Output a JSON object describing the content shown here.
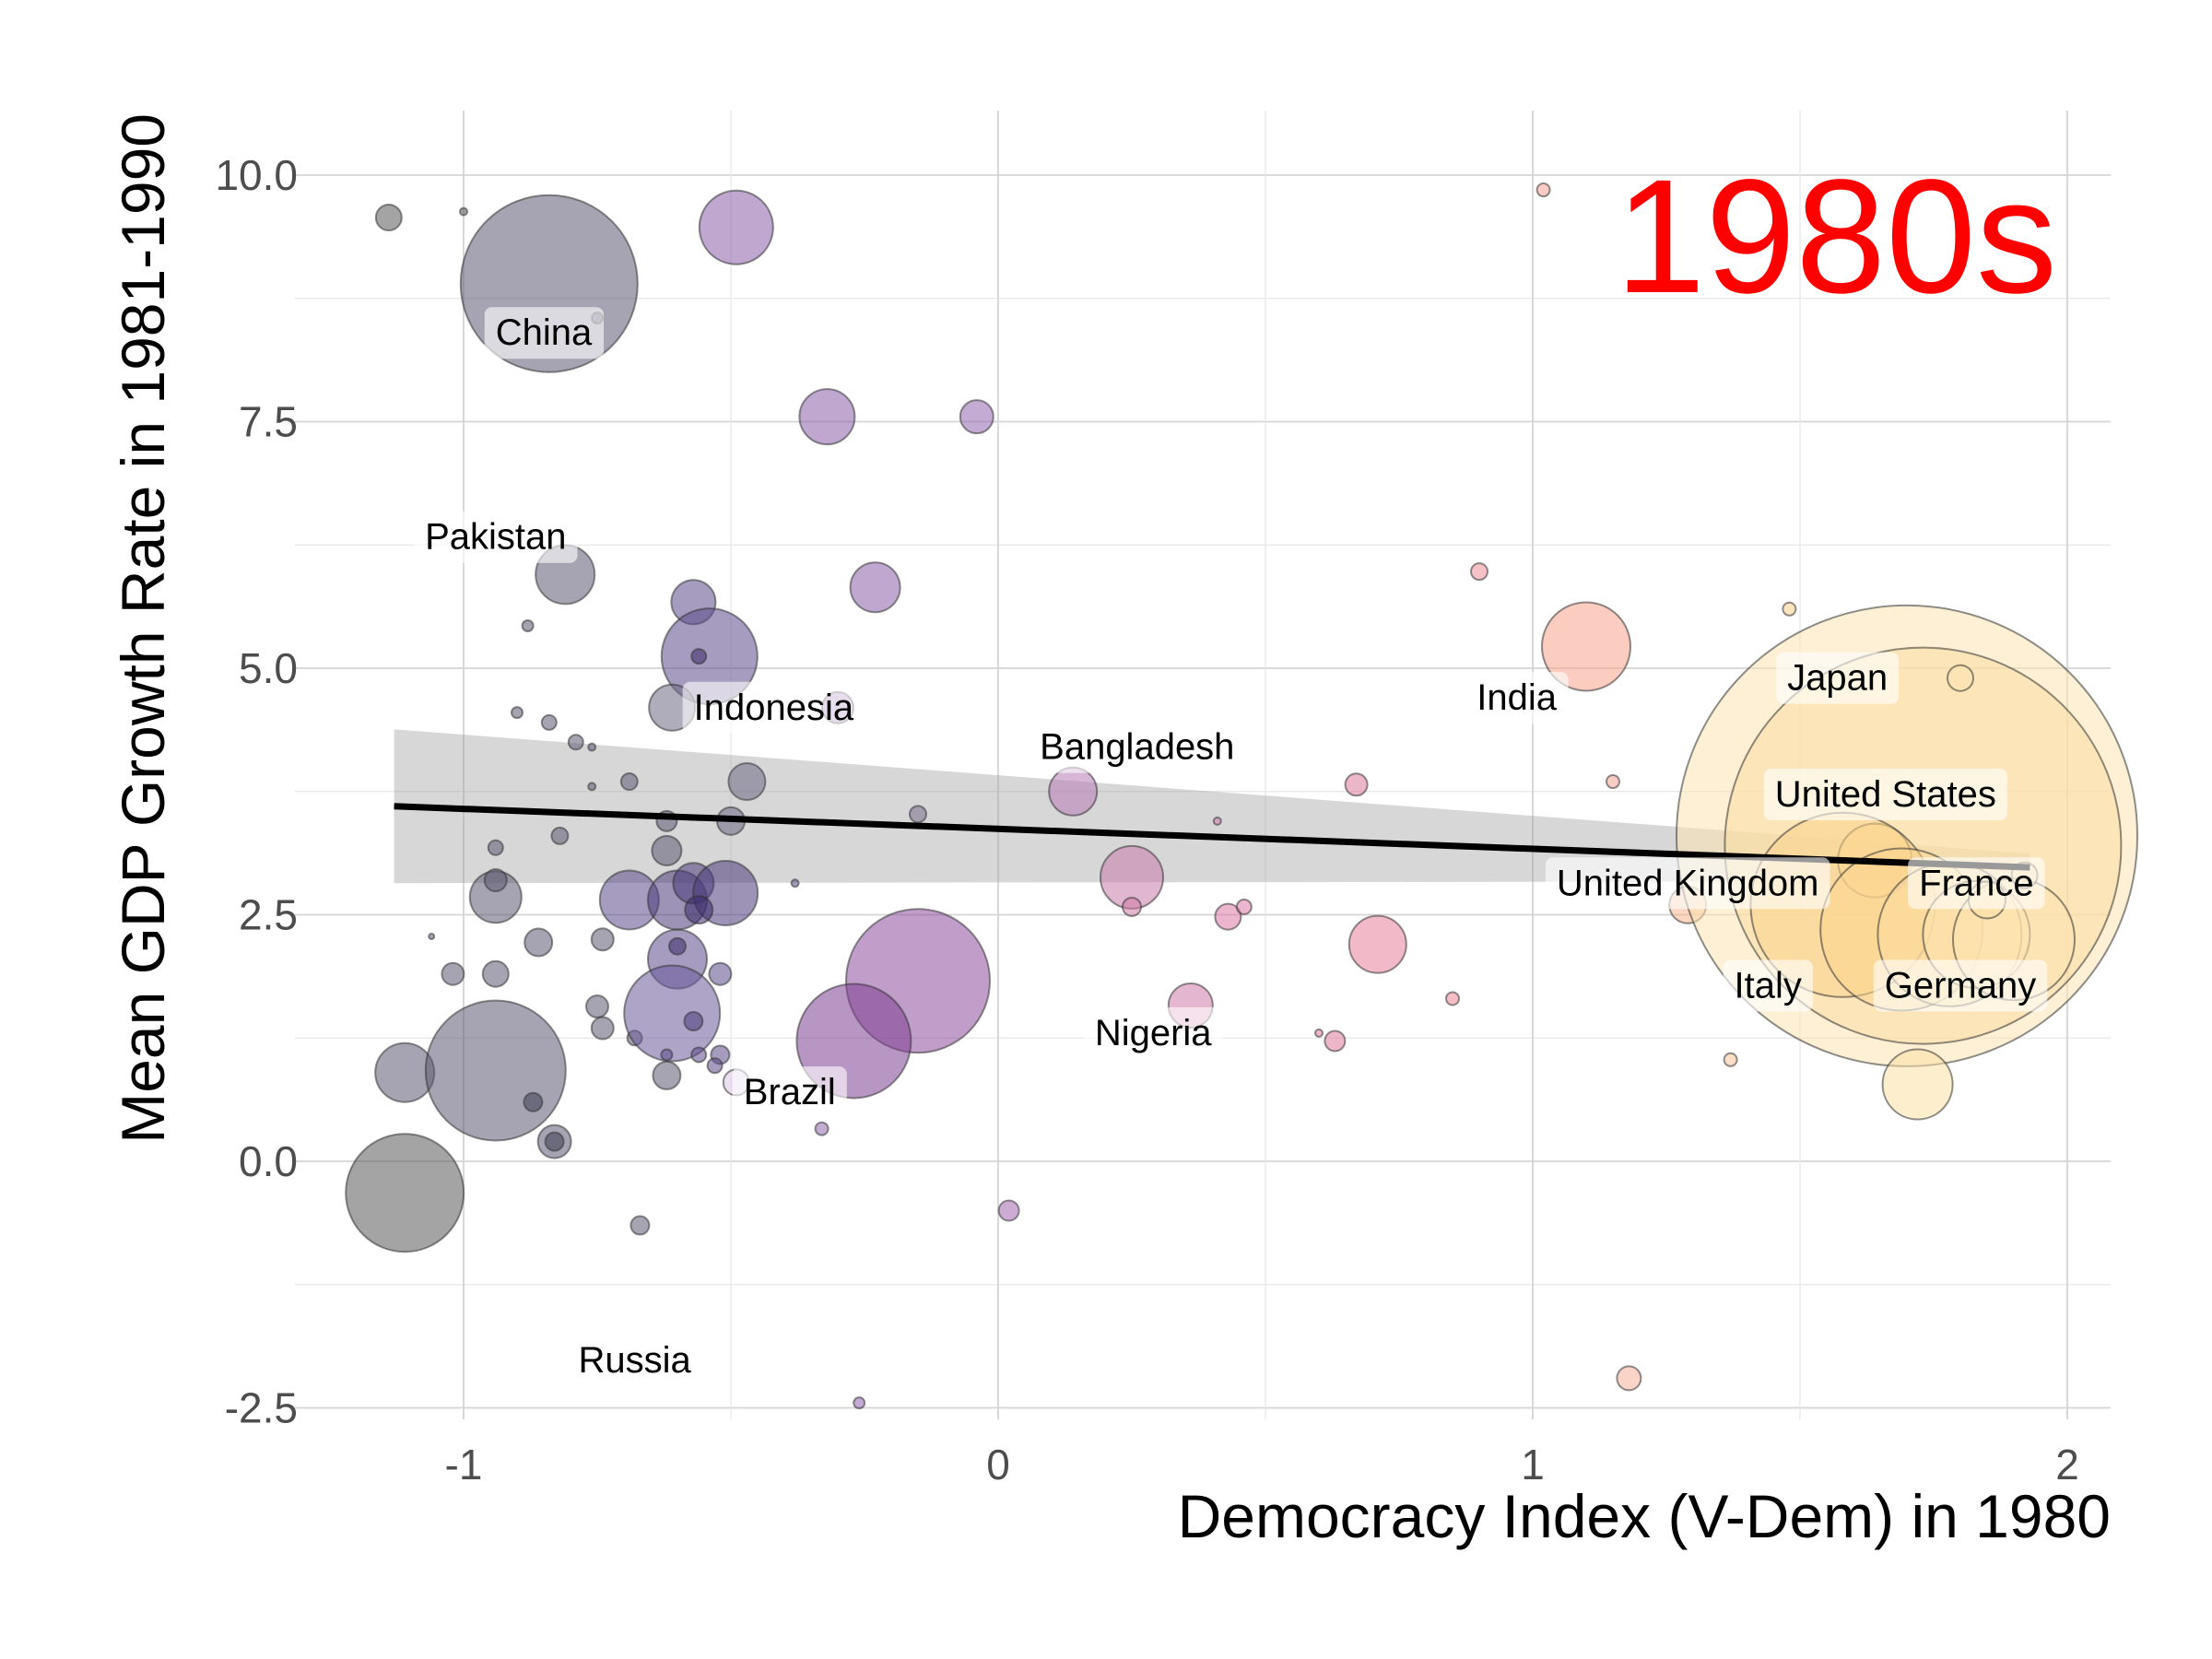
{
  "chart_data": {
    "type": "scatter",
    "title": "",
    "annotation": "1980s",
    "annotation_color": "#ff0000",
    "xlabel": "Democracy Index (V-Dem) in 1980",
    "ylabel": "Mean GDP Growth Rate in 1981-1990",
    "xlim": [
      -1.25,
      2.08
    ],
    "ylim": [
      -2.5,
      10.55
    ],
    "x_ticks": [
      -1,
      0,
      1,
      2
    ],
    "x_tick_labels": [
      "-1",
      "0",
      "1",
      "2"
    ],
    "y_ticks": [
      -2.5,
      0,
      2.5,
      5,
      7.5,
      10
    ],
    "y_tick_labels": [
      "-2.5",
      "0.0",
      "2.5",
      "5.0",
      "7.5",
      "10.0"
    ],
    "grid": true,
    "legend": "none",
    "encoding": {
      "size": "population",
      "color": "democracy index (dark purple → pink → light yellow)"
    },
    "trend": {
      "x0": -1.13,
      "y0": 3.6,
      "x1": 1.93,
      "y1": 2.98,
      "ci_lower": [
        2.82,
        2.84
      ],
      "ci_upper": [
        4.38,
        3.12
      ]
    },
    "points": [
      {
        "x": -1.14,
        "y": 9.57,
        "r": 14,
        "c": "#5a5a5a"
      },
      {
        "x": -1.0,
        "y": 9.63,
        "r": 4,
        "c": "#5a5a5a"
      },
      {
        "x": -0.84,
        "y": 8.9,
        "r": 96,
        "c": "#5c5a73"
      },
      {
        "x": -0.75,
        "y": 8.55,
        "r": 6,
        "c": "#4f4a64"
      },
      {
        "x": -0.49,
        "y": 9.47,
        "r": 40,
        "c": "#8a5fa8"
      },
      {
        "x": -0.32,
        "y": 7.55,
        "r": 30,
        "c": "#8a5fa8"
      },
      {
        "x": -0.04,
        "y": 7.55,
        "r": 18,
        "c": "#9366b0"
      },
      {
        "x": -0.81,
        "y": 5.95,
        "r": 32,
        "c": "#5c5a73"
      },
      {
        "x": -0.88,
        "y": 5.43,
        "r": 6,
        "c": "#5c5a73"
      },
      {
        "x": -0.57,
        "y": 5.67,
        "r": 24,
        "c": "#5c4b8a"
      },
      {
        "x": -0.23,
        "y": 5.82,
        "r": 27,
        "c": "#8a5fa8"
      },
      {
        "x": -0.54,
        "y": 5.12,
        "r": 52,
        "c": "#5c4b8a"
      },
      {
        "x": -0.56,
        "y": 5.12,
        "r": 8,
        "c": "#3d2a6a"
      },
      {
        "x": -0.61,
        "y": 4.6,
        "r": 25,
        "c": "#6e6a85"
      },
      {
        "x": -0.3,
        "y": 4.6,
        "r": 17,
        "c": "#9366b0"
      },
      {
        "x": -0.9,
        "y": 4.55,
        "r": 6,
        "c": "#5c5a73"
      },
      {
        "x": -0.84,
        "y": 4.45,
        "r": 8,
        "c": "#5c5a73"
      },
      {
        "x": -0.79,
        "y": 4.25,
        "r": 8,
        "c": "#5c5a73"
      },
      {
        "x": -0.76,
        "y": 4.2,
        "r": 4,
        "c": "#5c5a73"
      },
      {
        "x": -0.69,
        "y": 3.85,
        "r": 9,
        "c": "#5c5a73"
      },
      {
        "x": -0.76,
        "y": 3.8,
        "r": 4,
        "c": "#5c5a73"
      },
      {
        "x": -0.47,
        "y": 3.85,
        "r": 20,
        "c": "#6e6a85"
      },
      {
        "x": -0.5,
        "y": 3.45,
        "r": 15,
        "c": "#6e6a85"
      },
      {
        "x": -0.62,
        "y": 3.45,
        "r": 11,
        "c": "#5c5a73"
      },
      {
        "x": -0.15,
        "y": 3.52,
        "r": 9,
        "c": "#7a6e8a"
      },
      {
        "x": -0.82,
        "y": 3.3,
        "r": 9,
        "c": "#5c5a73"
      },
      {
        "x": -0.94,
        "y": 3.18,
        "r": 8,
        "c": "#5c5a73"
      },
      {
        "x": -0.62,
        "y": 3.15,
        "r": 16,
        "c": "#5c5a73"
      },
      {
        "x": -0.94,
        "y": 2.68,
        "r": 28,
        "c": "#5c5a73"
      },
      {
        "x": -0.94,
        "y": 2.85,
        "r": 12,
        "c": "#5c5a73"
      },
      {
        "x": -0.69,
        "y": 2.65,
        "r": 32,
        "c": "#5c4b8a"
      },
      {
        "x": -0.6,
        "y": 2.65,
        "r": 32,
        "c": "#4b3b7a"
      },
      {
        "x": -0.57,
        "y": 2.82,
        "r": 22,
        "c": "#4b3b7a"
      },
      {
        "x": -0.51,
        "y": 2.72,
        "r": 35,
        "c": "#4b3b7a"
      },
      {
        "x": -0.56,
        "y": 2.55,
        "r": 15,
        "c": "#3d2a6a"
      },
      {
        "x": -0.38,
        "y": 2.82,
        "r": 4,
        "c": "#5c4b8a"
      },
      {
        "x": -1.06,
        "y": 2.28,
        "r": 3,
        "c": "#5c5a73"
      },
      {
        "x": -0.86,
        "y": 2.22,
        "r": 15,
        "c": "#5c5a73"
      },
      {
        "x": -0.74,
        "y": 2.25,
        "r": 12,
        "c": "#5c5a73"
      },
      {
        "x": -0.6,
        "y": 2.05,
        "r": 32,
        "c": "#5c4b8a"
      },
      {
        "x": -0.6,
        "y": 2.18,
        "r": 9,
        "c": "#3d2a6a"
      },
      {
        "x": -1.02,
        "y": 1.9,
        "r": 12,
        "c": "#5c5a73"
      },
      {
        "x": -0.94,
        "y": 1.9,
        "r": 14,
        "c": "#5c5a73"
      },
      {
        "x": -0.52,
        "y": 1.9,
        "r": 12,
        "c": "#5c4b8a"
      },
      {
        "x": -0.75,
        "y": 1.57,
        "r": 12,
        "c": "#5c5a73"
      },
      {
        "x": -0.74,
        "y": 1.35,
        "r": 12,
        "c": "#5c5a73"
      },
      {
        "x": -0.68,
        "y": 1.25,
        "r": 8,
        "c": "#5c5a73"
      },
      {
        "x": -0.61,
        "y": 1.5,
        "r": 52,
        "c": "#6a5a9a"
      },
      {
        "x": -0.57,
        "y": 1.42,
        "r": 10,
        "c": "#4b3b7a"
      },
      {
        "x": -0.15,
        "y": 1.83,
        "r": 78,
        "c": "#8e4f9e"
      },
      {
        "x": -0.27,
        "y": 1.22,
        "r": 62,
        "c": "#7e3f92"
      },
      {
        "x": -0.62,
        "y": 1.08,
        "r": 6,
        "c": "#5c4b8a"
      },
      {
        "x": -0.56,
        "y": 1.08,
        "r": 8,
        "c": "#5c4b8a"
      },
      {
        "x": -0.52,
        "y": 1.08,
        "r": 10,
        "c": "#5c4b8a"
      },
      {
        "x": -0.53,
        "y": 0.97,
        "r": 8,
        "c": "#5c4b8a"
      },
      {
        "x": -0.62,
        "y": 0.87,
        "r": 15,
        "c": "#5c5a73"
      },
      {
        "x": -0.49,
        "y": 0.8,
        "r": 14,
        "c": "#d8c8e8"
      },
      {
        "x": -1.11,
        "y": 0.9,
        "r": 32,
        "c": "#5c5a73"
      },
      {
        "x": -0.94,
        "y": 0.92,
        "r": 76,
        "c": "#5c5a73"
      },
      {
        "x": -0.87,
        "y": 0.6,
        "r": 10,
        "c": "#3d3d52"
      },
      {
        "x": -0.83,
        "y": 0.2,
        "r": 18,
        "c": "#5c5a73"
      },
      {
        "x": -0.83,
        "y": 0.2,
        "r": 10,
        "c": "#3d3d52"
      },
      {
        "x": -1.11,
        "y": -0.32,
        "r": 64,
        "c": "#5a5a5a"
      },
      {
        "x": -0.33,
        "y": 0.33,
        "r": 7,
        "c": "#9366b0"
      },
      {
        "x": -0.67,
        "y": -0.65,
        "r": 10,
        "c": "#5c5a73"
      },
      {
        "x": 0.02,
        "y": -0.5,
        "r": 11,
        "c": "#a466b0"
      },
      {
        "x": -0.26,
        "y": -2.45,
        "r": 6,
        "c": "#9366b0"
      },
      {
        "x": 0.14,
        "y": 3.75,
        "r": 26,
        "c": "#b77ab8"
      },
      {
        "x": 0.25,
        "y": 2.88,
        "r": 34,
        "c": "#c77aaa"
      },
      {
        "x": 0.25,
        "y": 2.58,
        "r": 10,
        "c": "#d07aa8"
      },
      {
        "x": 0.41,
        "y": 3.45,
        "r": 4,
        "c": "#d07aa8"
      },
      {
        "x": 0.43,
        "y": 2.48,
        "r": 14,
        "c": "#dc7aa8"
      },
      {
        "x": 0.46,
        "y": 2.58,
        "r": 8,
        "c": "#dc7aa8"
      },
      {
        "x": 0.36,
        "y": 1.58,
        "r": 24,
        "c": "#d07aa8"
      },
      {
        "x": 0.6,
        "y": 1.3,
        "r": 4,
        "c": "#e07a9c"
      },
      {
        "x": 0.63,
        "y": 1.22,
        "r": 11,
        "c": "#e07a9c"
      },
      {
        "x": 0.67,
        "y": 3.82,
        "r": 12,
        "c": "#e07a9c"
      },
      {
        "x": 0.71,
        "y": 2.2,
        "r": 31,
        "c": "#e8809a"
      },
      {
        "x": 0.85,
        "y": 1.65,
        "r": 7,
        "c": "#ec8a95"
      },
      {
        "x": 0.9,
        "y": 5.98,
        "r": 9,
        "c": "#ee8f96"
      },
      {
        "x": 1.02,
        "y": 9.85,
        "r": 7,
        "c": "#f5a398"
      },
      {
        "x": 1.1,
        "y": 5.22,
        "r": 48,
        "c": "#f8a48e"
      },
      {
        "x": 1.15,
        "y": 3.85,
        "r": 7,
        "c": "#f5a398"
      },
      {
        "x": 1.18,
        "y": -2.2,
        "r": 13,
        "c": "#f8b19a"
      },
      {
        "x": 1.29,
        "y": 2.6,
        "r": 20,
        "c": "#f8b58e"
      },
      {
        "x": 1.37,
        "y": 1.03,
        "r": 7,
        "c": "#fbc49a"
      },
      {
        "x": 1.48,
        "y": 5.6,
        "r": 7,
        "c": "#fbd08c"
      },
      {
        "x": 1.7,
        "y": 3.3,
        "r": 250,
        "c": "#fce4b0"
      },
      {
        "x": 1.73,
        "y": 3.2,
        "r": 215,
        "c": "#fcdca0"
      },
      {
        "x": 1.64,
        "y": 3.05,
        "r": 40,
        "c": "#fcd890"
      },
      {
        "x": 1.58,
        "y": 2.6,
        "r": 100,
        "c": "#fbd48e"
      },
      {
        "x": 1.69,
        "y": 2.35,
        "r": 88,
        "c": "#fcd690"
      },
      {
        "x": 1.78,
        "y": 2.3,
        "r": 78,
        "c": "#fcdca0"
      },
      {
        "x": 1.83,
        "y": 2.3,
        "r": 58,
        "c": "#fde4b0"
      },
      {
        "x": 1.9,
        "y": 2.25,
        "r": 66,
        "c": "#fde4b0"
      },
      {
        "x": 1.8,
        "y": 4.9,
        "r": 14,
        "c": "#fde4b0"
      },
      {
        "x": 1.72,
        "y": 0.78,
        "r": 38,
        "c": "#fce0a6"
      },
      {
        "x": 1.85,
        "y": 2.65,
        "r": 20,
        "c": "#fce0a6"
      },
      {
        "x": 1.92,
        "y": 2.9,
        "r": 14,
        "c": "#fce0a6"
      }
    ],
    "labels": [
      {
        "text": "China",
        "x": -0.85,
        "y": 8.4
      },
      {
        "text": "Pakistan",
        "x": -0.94,
        "y": 6.33
      },
      {
        "text": "Indonesia",
        "x": -0.42,
        "y": 4.6
      },
      {
        "text": "Bangladesh",
        "x": 0.26,
        "y": 4.2
      },
      {
        "text": "Brazil",
        "x": -0.39,
        "y": 0.7
      },
      {
        "text": "Russia",
        "x": -0.68,
        "y": -2.02
      },
      {
        "text": "Nigeria",
        "x": 0.29,
        "y": 1.3
      },
      {
        "text": "India",
        "x": 0.97,
        "y": 4.7
      },
      {
        "text": "Japan",
        "x": 1.57,
        "y": 4.9
      },
      {
        "text": "United States",
        "x": 1.66,
        "y": 3.72
      },
      {
        "text": "United Kingdom",
        "x": 1.29,
        "y": 2.82
      },
      {
        "text": "France",
        "x": 1.83,
        "y": 2.82
      },
      {
        "text": "Italy",
        "x": 1.44,
        "y": 1.78
      },
      {
        "text": "Germany",
        "x": 1.8,
        "y": 1.78
      }
    ]
  }
}
